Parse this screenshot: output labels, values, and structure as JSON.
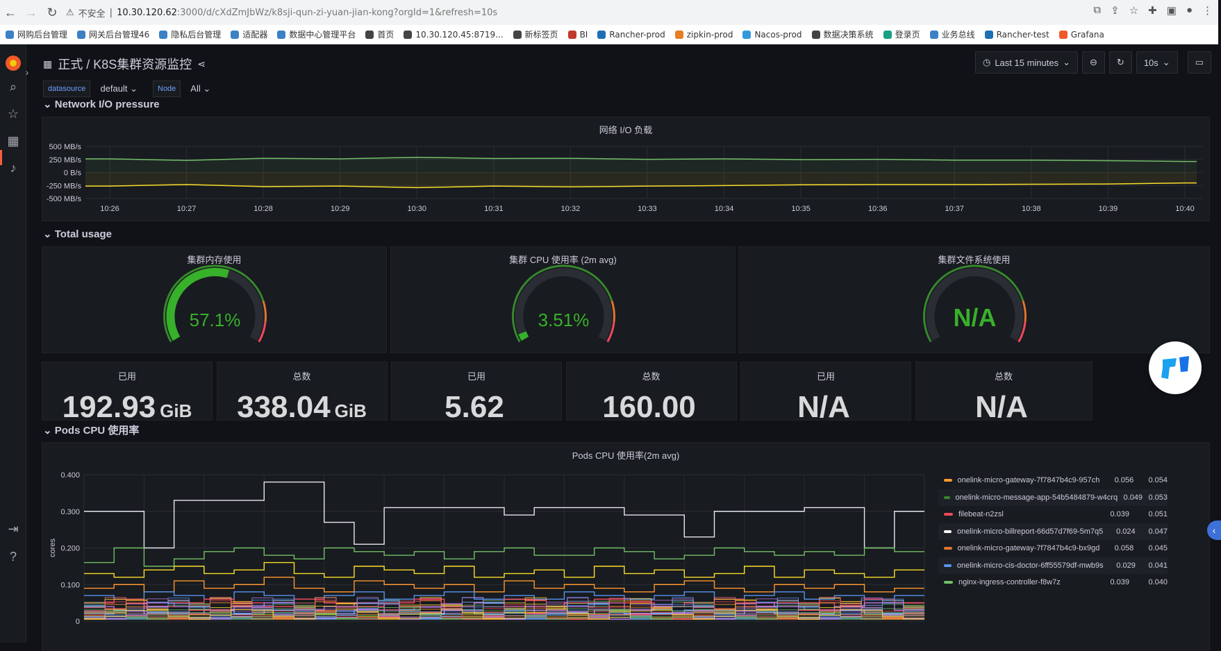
{
  "browser": {
    "security_warning": "不安全",
    "url_host": "10.30.120.62",
    "url_path": ":3000/d/cXdZmJbWz/k8sji-qun-zi-yuan-jian-kong?orgId=1&refresh=10s",
    "bookmarks": [
      {
        "label": "网购后台管理",
        "color": "#3b82c4"
      },
      {
        "label": "网关后台管理46",
        "color": "#3b82c4"
      },
      {
        "label": "隐私后台管理",
        "color": "#3b82c4"
      },
      {
        "label": "适配器",
        "color": "#3b82c4"
      },
      {
        "label": "数据中心管理平台",
        "color": "#3b82c4"
      },
      {
        "label": "首页",
        "color": "#444444"
      },
      {
        "label": "10.30.120.45:8719...",
        "color": "#444444"
      },
      {
        "label": "新标签页",
        "color": "#444444"
      },
      {
        "label": "BI",
        "color": "#c0392b"
      },
      {
        "label": "Rancher-prod",
        "color": "#1f6fb5"
      },
      {
        "label": "zipkin-prod",
        "color": "#e67e22"
      },
      {
        "label": "Nacos-prod",
        "color": "#3498db"
      },
      {
        "label": "数据决策系统",
        "color": "#444444"
      },
      {
        "label": "登录页",
        "color": "#16a085"
      },
      {
        "label": "业务总线",
        "color": "#3b82c4"
      },
      {
        "label": "Rancher-test",
        "color": "#1f6fb5"
      },
      {
        "label": "Grafana",
        "color": "#f05a28"
      }
    ]
  },
  "dashboard": {
    "title": "正式 / K8S集群资源监控",
    "time_range": "Last 15 minutes",
    "refresh": "10s",
    "variables": [
      {
        "label": "datasource",
        "value": "default"
      },
      {
        "label": "Node",
        "value": "All"
      }
    ]
  },
  "rows": {
    "network": "Network I/O pressure",
    "total": "Total usage",
    "pods": "Pods CPU 使用率"
  },
  "gauges": [
    {
      "title": "集群内存使用",
      "value": "57.1%",
      "fraction": 0.571
    },
    {
      "title": "集群 CPU 使用率 (2m avg)",
      "value": "3.51%",
      "fraction": 0.0351
    },
    {
      "title": "集群文件系统使用",
      "value": "N/A",
      "fraction": 0
    }
  ],
  "stats": [
    {
      "label": "已用",
      "value": "192.93",
      "unit": "GiB"
    },
    {
      "label": "总数",
      "value": "338.04",
      "unit": "GiB"
    },
    {
      "label": "已用",
      "value": "5.62",
      "unit": ""
    },
    {
      "label": "总数",
      "value": "160.00",
      "unit": ""
    },
    {
      "label": "已用",
      "value": "N/A",
      "unit": ""
    },
    {
      "label": "总数",
      "value": "N/A",
      "unit": ""
    }
  ],
  "legend": [
    {
      "name": "onelink-micro-gateway-7f7847b4c9-957ch",
      "v1": "0.056",
      "v2": "0.054",
      "color": "#ff9830"
    },
    {
      "name": "onelink-micro-message-app-54b5484879-w4crq",
      "v1": "0.049",
      "v2": "0.053",
      "color": "#37872d"
    },
    {
      "name": "filebeat-n2zsl",
      "v1": "0.039",
      "v2": "0.051",
      "color": "#f2495c"
    },
    {
      "name": "onelink-micro-billreport-66d57d7f69-5m7q5",
      "v1": "0.024",
      "v2": "0.047",
      "color": "#ffffff"
    },
    {
      "name": "onelink-micro-gateway-7f7847b4c9-bx9gd",
      "v1": "0.058",
      "v2": "0.045",
      "color": "#e0752d"
    },
    {
      "name": "onelink-micro-cis-doctor-6ff55579df-mwb9s",
      "v1": "0.029",
      "v2": "0.041",
      "color": "#5794f2"
    },
    {
      "name": "nginx-ingress-controller-f8w7z",
      "v1": "0.039",
      "v2": "0.040",
      "color": "#73bf69"
    }
  ],
  "chart_data": [
    {
      "type": "line",
      "title": "网络 I/O 负载",
      "x": [
        "10:26",
        "10:27",
        "10:28",
        "10:29",
        "10:30",
        "10:31",
        "10:32",
        "10:33",
        "10:34",
        "10:35",
        "10:36",
        "10:37",
        "10:38",
        "10:39",
        "10:40"
      ],
      "y_ticks": [
        "500 MB/s",
        "250 MB/s",
        "0 B/s",
        "-250 MB/s",
        "-500 MB/s"
      ],
      "ylim": [
        -500,
        500
      ],
      "series": [
        {
          "color": "#73bf69",
          "values": [
            262,
            232,
            272,
            262,
            292,
            268,
            272,
            252,
            262,
            247,
            252,
            237,
            237,
            227,
            212
          ]
        },
        {
          "color": "#fade2a",
          "values": [
            -262,
            -232,
            -272,
            -262,
            -292,
            -262,
            -277,
            -262,
            -252,
            -237,
            -232,
            -232,
            -227,
            -222,
            -202
          ]
        }
      ]
    },
    {
      "type": "line",
      "title": "Pods CPU 使用率(2m avg)",
      "ylabel": "cores",
      "y_ticks": [
        "0.400",
        "0.300",
        "0.200",
        "0.100",
        "0"
      ],
      "ylim": [
        0,
        0.4
      ],
      "series": [
        {
          "color": "#e8e8f0",
          "values": [
            0.3,
            0.3,
            0.2,
            0.33,
            0.33,
            0.33,
            0.38,
            0.38,
            0.27,
            0.21,
            0.31,
            0.31,
            0.31,
            0.31,
            0.29,
            0.31,
            0.31,
            0.31,
            0.29,
            0.29,
            0.23,
            0.3,
            0.3,
            0.3,
            0.31,
            0.31,
            0.2,
            0.3
          ]
        },
        {
          "color": "#73bf69",
          "values": [
            0.16,
            0.2,
            0.15,
            0.17,
            0.19,
            0.2,
            0.18,
            0.17,
            0.2,
            0.19,
            0.18,
            0.19,
            0.17,
            0.19,
            0.2,
            0.18,
            0.18,
            0.2,
            0.19,
            0.17,
            0.18,
            0.2,
            0.19,
            0.18,
            0.19,
            0.18,
            0.2,
            0.19
          ]
        },
        {
          "color": "#fade2a",
          "values": [
            0.13,
            0.12,
            0.14,
            0.15,
            0.13,
            0.14,
            0.16,
            0.13,
            0.12,
            0.15,
            0.14,
            0.13,
            0.15,
            0.12,
            0.13,
            0.14,
            0.12,
            0.15,
            0.13,
            0.14,
            0.12,
            0.13,
            0.15,
            0.12,
            0.14,
            0.13,
            0.12,
            0.14
          ]
        },
        {
          "color": "#ff9830",
          "values": [
            0.09,
            0.1,
            0.08,
            0.11,
            0.09,
            0.1,
            0.12,
            0.09,
            0.08,
            0.11,
            0.1,
            0.09,
            0.1,
            0.08,
            0.11,
            0.09,
            0.1,
            0.09,
            0.08,
            0.1,
            0.11,
            0.09,
            0.08,
            0.1,
            0.09,
            0.1,
            0.08,
            0.09
          ]
        },
        {
          "color": "#5794f2",
          "values": [
            0.07,
            0.06,
            0.08,
            0.07,
            0.06,
            0.08,
            0.07,
            0.06,
            0.07,
            0.08,
            0.06,
            0.07,
            0.08,
            0.06,
            0.07,
            0.06,
            0.08,
            0.07,
            0.06,
            0.07,
            0.08,
            0.06,
            0.07,
            0.08,
            0.06,
            0.07,
            0.06,
            0.07
          ]
        },
        {
          "color": "#f2495c",
          "values": [
            0.05,
            0.06,
            0.04,
            0.05,
            0.06,
            0.05,
            0.04,
            0.06,
            0.05,
            0.04,
            0.05,
            0.06,
            0.04,
            0.05,
            0.06,
            0.04,
            0.05,
            0.06,
            0.05,
            0.04,
            0.05,
            0.06,
            0.04,
            0.05,
            0.05,
            0.04,
            0.06,
            0.05
          ]
        },
        {
          "color": "#b877d9",
          "values": [
            0.04,
            0.03,
            0.05,
            0.04,
            0.03,
            0.04,
            0.05,
            0.03,
            0.04,
            0.05,
            0.03,
            0.04,
            0.03,
            0.05,
            0.04,
            0.03,
            0.04,
            0.05,
            0.03,
            0.04,
            0.04,
            0.03,
            0.05,
            0.04,
            0.03,
            0.04,
            0.05,
            0.03
          ]
        },
        {
          "color": "#8ab8ff",
          "values": [
            0.02,
            0.03,
            0.02,
            0.02,
            0.03,
            0.02,
            0.03,
            0.02,
            0.02,
            0.03,
            0.02,
            0.02,
            0.03,
            0.02,
            0.03,
            0.02,
            0.02,
            0.03,
            0.02,
            0.02,
            0.03,
            0.02,
            0.03,
            0.02,
            0.02,
            0.03,
            0.02,
            0.02
          ]
        }
      ]
    }
  ]
}
